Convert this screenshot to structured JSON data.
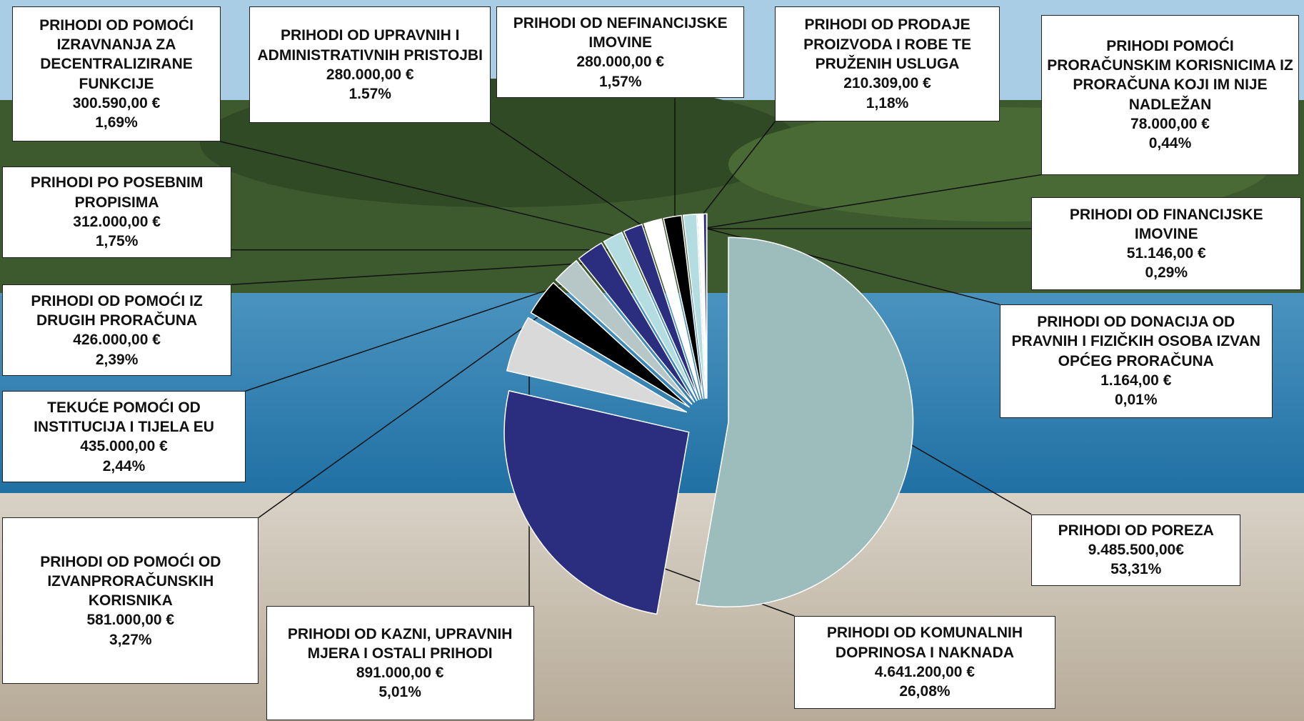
{
  "chart_data": {
    "type": "pie",
    "categories": [
      "PRIHODI OD POREZA",
      "PRIHODI OD KOMUNALNIH DOPRINOSA I NAKNADA",
      "PRIHODI OD KAZNI, UPRAVNIH MJERA I OSTALI PRIHODI",
      "PRIHODI OD POMOĆI OD IZVANPRORAČUNSKIH KORISNIKA",
      "TEKUĆE POMOĆI OD INSTITUCIJA I TIJELA EU",
      "PRIHODI OD POMOĆI IZ DRUGIH PRORAČUNA",
      "PRIHODI PO POSEBNIM PROPISIMA",
      "PRIHODI OD POMOĆI IZRAVNANJA ZA DECENTRALIZIRANE FUNKCIJE",
      "PRIHODI OD UPRAVNIH I ADMINISTRATIVNIH PRISTOJBI",
      "PRIHODI OD NEFINANCIJSKE IMOVINE",
      "PRIHODI OD PRODAJE PROIZVODA I ROBE TE PRUŽENIH USLUGA",
      "PRIHODI POMOĆI PRORAČUNSKIM KORISNICIMA IZ PRORAČUNA KOJI IM NIJE NADLEŽAN",
      "PRIHODI OD FINANCIJSKE IMOVINE",
      "PRIHODI OD DONACIJA OD PRAVNIH I FIZIČKIH OSOBA IZVAN OPĆEG PRORAČUNA"
    ],
    "values": [
      9485500,
      4641200,
      891000,
      581000,
      435000,
      426000,
      312000,
      300590,
      280000,
      280000,
      210309,
      78000,
      51146,
      1164
    ],
    "value_labels": [
      "9.485.500,00€",
      "4.641.200,00 €",
      "891.000,00 €",
      "581.000,00 €",
      "435.000,00 €",
      "426.000,00 €",
      "312.000,00 €",
      "300.590,00 €",
      "280.000,00 €",
      "280.000,00 €",
      "210.309,00 €",
      "78.000,00 €",
      "51.146,00 €",
      "1.164,00 €"
    ],
    "percents": [
      53.31,
      26.08,
      5.01,
      3.27,
      2.44,
      2.39,
      1.75,
      1.69,
      1.57,
      1.57,
      1.18,
      0.44,
      0.29,
      0.01
    ],
    "percent_labels": [
      "53,31%",
      "26,08%",
      "5,01%",
      "3,27%",
      "2,44%",
      "2,39%",
      "1,75%",
      "1,69%",
      "1.57%",
      "1,57%",
      "1,18%",
      "0,44%",
      "0,29%",
      "0,01%"
    ],
    "colors": [
      "#9dbcbc",
      "#2b2d7e",
      "#d9d9d9",
      "#000000",
      "#b7c6c6",
      "#2b2d7e",
      "#b3dde1",
      "#2b2d7e",
      "#ffffff",
      "#000000",
      "#b3dde1",
      "#ffffff",
      "#2b2d7e",
      "#d9e8ea"
    ]
  }
}
